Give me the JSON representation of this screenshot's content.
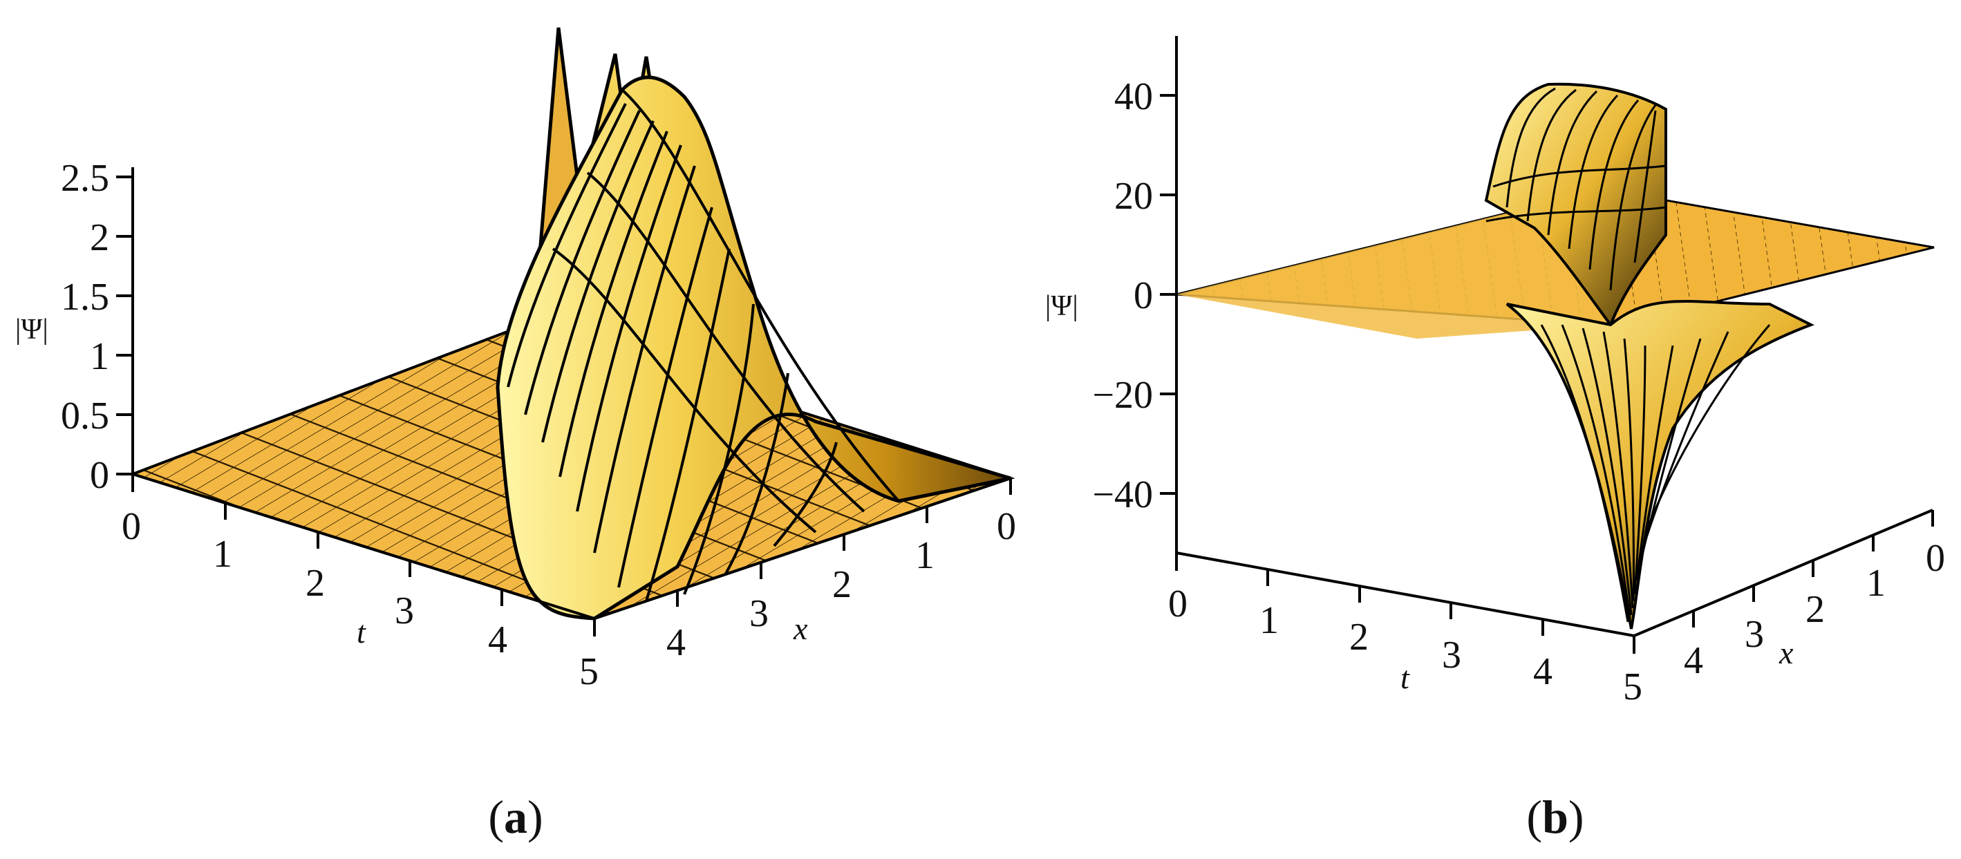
{
  "figure": {
    "panels": [
      {
        "id": "a",
        "caption_letter": "a",
        "zlabel": "|Ψ|",
        "xlabel": "x",
        "tlabel": "t",
        "z_ticks": [
          "0",
          "0.5",
          "1",
          "1.5",
          "2",
          "2.5"
        ],
        "x_ticks": [
          "0",
          "1",
          "2",
          "3",
          "4",
          "5"
        ],
        "t_ticks": [
          "0",
          "1",
          "2",
          "3",
          "4",
          "5"
        ]
      },
      {
        "id": "b",
        "caption_letter": "b",
        "zlabel": "|Ψ|",
        "xlabel": "x",
        "tlabel": "t",
        "z_ticks": [
          "40",
          "20",
          "0",
          "−20",
          "−40"
        ],
        "x_ticks": [
          "0",
          "1",
          "2",
          "3",
          "4",
          "5"
        ],
        "t_ticks": [
          "0",
          "1",
          "2",
          "3",
          "4",
          "5"
        ]
      }
    ]
  },
  "chart_data": [
    {
      "type": "surface",
      "panel": "a",
      "xlabel": "x",
      "ylabel": "t",
      "zlabel": "|Ψ|",
      "xlim": [
        0,
        5
      ],
      "tlim": [
        0,
        5
      ],
      "zlim": [
        0,
        2.5
      ],
      "shape": "single bright soliton ridge along a diagonal of the (x,t) plane, flat ~0 elsewhere",
      "peak_value": 2.5,
      "surface_color": "#f2b63c",
      "mesh_color": "#000000"
    },
    {
      "type": "surface",
      "panel": "b",
      "xlabel": "x",
      "ylabel": "t",
      "zlabel": "|Ψ|",
      "xlim": [
        0,
        5
      ],
      "tlim": [
        0,
        5
      ],
      "zlim": [
        -50,
        50
      ],
      "shape": "singular kink: sharp spike up to ~+40 and down to ~-50 along a curve, flat ~0 elsewhere",
      "max_value": 40,
      "min_value": -50,
      "surface_color": "#f2b63c",
      "mesh_color": "#000000"
    }
  ]
}
